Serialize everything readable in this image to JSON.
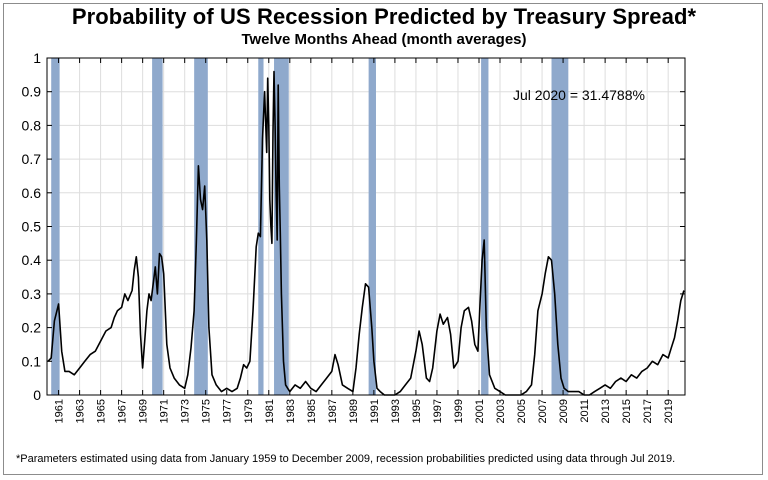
{
  "chart_data": {
    "type": "line",
    "title": "Probability of US Recession Predicted by Treasury Spread*",
    "subtitle": "Twelve Months Ahead (month averages)",
    "footnote": "*Parameters estimated using data from January 1959 to December 2009, recession probabilities predicted using data through Jul 2019.",
    "annotation": "Jul 2020 = 31.4788%",
    "xlim": [
      1959.9,
      2020.6
    ],
    "ylim": [
      0,
      1
    ],
    "yticks": [
      "0",
      "0.1",
      "0.2",
      "0.3",
      "0.4",
      "0.5",
      "0.6",
      "0.7",
      "0.8",
      "0.9",
      "1"
    ],
    "xticks": [
      "1961",
      "1963",
      "1965",
      "1967",
      "1969",
      "1971",
      "1973",
      "1975",
      "1977",
      "1979",
      "1981",
      "1983",
      "1985",
      "1987",
      "1989",
      "1991",
      "1993",
      "1995",
      "1997",
      "1999",
      "2001",
      "2003",
      "2005",
      "2007",
      "2009",
      "2011",
      "2013",
      "2015",
      "2017",
      "2019"
    ],
    "grid": true,
    "recession_color": "#8fa9cc",
    "line_color": "#000000",
    "recessions": [
      [
        1960.3,
        1961.1
      ],
      [
        1969.9,
        1970.9
      ],
      [
        1973.9,
        1975.2
      ],
      [
        1980.0,
        1980.5
      ],
      [
        1981.5,
        1982.9
      ],
      [
        1990.5,
        1991.2
      ],
      [
        2001.2,
        2001.9
      ],
      [
        2007.9,
        2009.5
      ]
    ],
    "series": [
      {
        "x": [
          1960.0,
          1960.3,
          1960.6,
          1961.0,
          1961.3,
          1961.6,
          1962.0,
          1962.5,
          1963.0,
          1963.5,
          1964.0,
          1964.5,
          1965.0,
          1965.5,
          1966.0,
          1966.3,
          1966.6,
          1967.0,
          1967.3,
          1967.6,
          1968.0,
          1968.2,
          1968.4,
          1968.6,
          1968.8,
          1969.0,
          1969.2,
          1969.4,
          1969.6,
          1969.8,
          1970.0,
          1970.2,
          1970.4,
          1970.6,
          1970.8,
          1971.0,
          1971.3,
          1971.6,
          1972.0,
          1972.5,
          1973.0,
          1973.3,
          1973.6,
          1973.9,
          1974.1,
          1974.3,
          1974.5,
          1974.7,
          1974.9,
          1975.1,
          1975.3,
          1975.6,
          1976.0,
          1976.5,
          1977.0,
          1977.5,
          1978.0,
          1978.3,
          1978.6,
          1978.9,
          1979.2,
          1979.5,
          1979.8,
          1980.0,
          1980.2,
          1980.4,
          1980.6,
          1980.8,
          1980.9,
          1981.0,
          1981.1,
          1981.2,
          1981.3,
          1981.4,
          1981.5,
          1981.6,
          1981.7,
          1981.8,
          1981.9,
          1982.0,
          1982.1,
          1982.2,
          1982.4,
          1982.6,
          1982.8,
          1983.0,
          1983.5,
          1984.0,
          1984.5,
          1985.0,
          1985.5,
          1986.0,
          1986.5,
          1987.0,
          1987.3,
          1987.6,
          1988.0,
          1988.5,
          1989.0,
          1989.3,
          1989.6,
          1989.9,
          1990.2,
          1990.5,
          1990.8,
          1991.0,
          1991.3,
          1991.6,
          1992.0,
          1992.5,
          1993.0,
          1993.5,
          1994.0,
          1994.5,
          1995.0,
          1995.3,
          1995.6,
          1996.0,
          1996.3,
          1996.6,
          1997.0,
          1997.3,
          1997.6,
          1998.0,
          1998.3,
          1998.6,
          1999.0,
          1999.3,
          1999.6,
          2000.0,
          2000.3,
          2000.6,
          2000.9,
          2001.1,
          2001.3,
          2001.5,
          2001.7,
          2002.0,
          2002.5,
          2003.0,
          2003.5,
          2004.0,
          2004.5,
          2005.0,
          2005.5,
          2006.0,
          2006.3,
          2006.6,
          2007.0,
          2007.3,
          2007.6,
          2007.9,
          2008.2,
          2008.5,
          2008.8,
          2009.1,
          2009.5,
          2010.0,
          2010.5,
          2011.0,
          2011.5,
          2012.0,
          2012.5,
          2013.0,
          2013.5,
          2014.0,
          2014.5,
          2015.0,
          2015.5,
          2016.0,
          2016.5,
          2017.0,
          2017.5,
          2018.0,
          2018.5,
          2019.0,
          2019.3,
          2019.6,
          2019.9,
          2020.2,
          2020.5
        ],
        "values": [
          0.1,
          0.11,
          0.22,
          0.27,
          0.13,
          0.07,
          0.07,
          0.06,
          0.08,
          0.1,
          0.12,
          0.13,
          0.16,
          0.19,
          0.2,
          0.23,
          0.25,
          0.26,
          0.3,
          0.28,
          0.31,
          0.37,
          0.41,
          0.35,
          0.18,
          0.08,
          0.16,
          0.25,
          0.3,
          0.28,
          0.33,
          0.38,
          0.3,
          0.42,
          0.41,
          0.36,
          0.15,
          0.08,
          0.05,
          0.03,
          0.02,
          0.06,
          0.14,
          0.25,
          0.45,
          0.68,
          0.58,
          0.55,
          0.62,
          0.46,
          0.2,
          0.06,
          0.03,
          0.01,
          0.02,
          0.01,
          0.02,
          0.05,
          0.09,
          0.08,
          0.1,
          0.25,
          0.44,
          0.48,
          0.47,
          0.76,
          0.9,
          0.72,
          0.94,
          0.8,
          0.58,
          0.5,
          0.45,
          0.78,
          0.96,
          0.8,
          0.6,
          0.46,
          0.92,
          0.62,
          0.48,
          0.3,
          0.1,
          0.03,
          0.02,
          0.01,
          0.03,
          0.02,
          0.04,
          0.02,
          0.01,
          0.03,
          0.05,
          0.07,
          0.12,
          0.09,
          0.03,
          0.02,
          0.01,
          0.08,
          0.18,
          0.26,
          0.33,
          0.32,
          0.2,
          0.1,
          0.02,
          0.01,
          0.0,
          0.0,
          0.0,
          0.01,
          0.03,
          0.05,
          0.13,
          0.19,
          0.15,
          0.05,
          0.04,
          0.08,
          0.19,
          0.24,
          0.21,
          0.23,
          0.18,
          0.08,
          0.1,
          0.2,
          0.25,
          0.26,
          0.22,
          0.15,
          0.13,
          0.27,
          0.4,
          0.46,
          0.2,
          0.06,
          0.02,
          0.01,
          0.0,
          0.0,
          0.0,
          0.0,
          0.01,
          0.03,
          0.12,
          0.25,
          0.3,
          0.36,
          0.41,
          0.4,
          0.3,
          0.15,
          0.05,
          0.02,
          0.01,
          0.01,
          0.01,
          0.0,
          0.0,
          0.01,
          0.02,
          0.03,
          0.02,
          0.04,
          0.05,
          0.04,
          0.06,
          0.05,
          0.07,
          0.08,
          0.1,
          0.09,
          0.12,
          0.11,
          0.14,
          0.17,
          0.22,
          0.28,
          0.31
        ]
      }
    ]
  }
}
